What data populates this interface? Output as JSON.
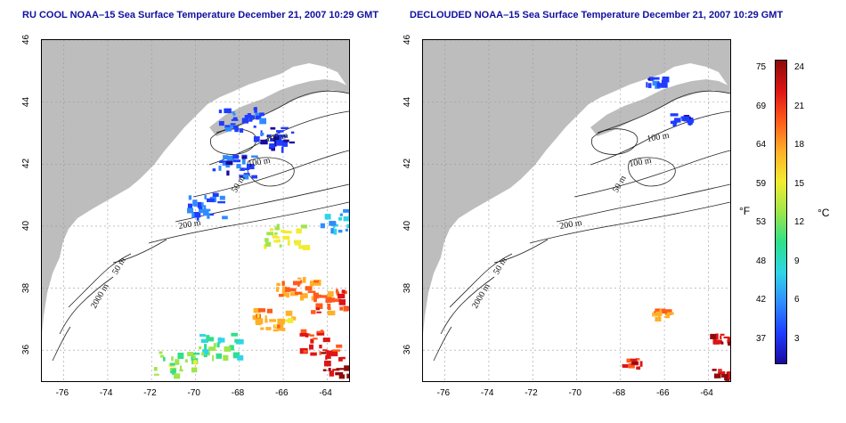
{
  "titles": {
    "left": "RU COOL NOAA–15 Sea Surface Temperature December 21, 2007 10:29 GMT",
    "right": "DECLOUDED NOAA–15 Sea Surface Temperature December 21, 2007 10:29 GMT"
  },
  "colors": {
    "land": "#bdbdbd",
    "ocean": "#ffffff",
    "title": "#1010a0",
    "contour": "#222222"
  },
  "contour_labels": [
    "100 m",
    "100 m",
    "50 m",
    "200 m",
    "50 m",
    "2000 m"
  ],
  "colorbar": {
    "fahrenheit_label": "°F",
    "celsius_label": "°C",
    "fahrenheit_ticks": [
      "75",
      "69",
      "64",
      "59",
      "53",
      "48",
      "42",
      "37"
    ],
    "celsius_ticks": [
      "24",
      "21",
      "18",
      "15",
      "12",
      "9",
      "6",
      "3"
    ],
    "colors": [
      "#1a0a9e",
      "#1f3cff",
      "#2f8cff",
      "#2fd6e6",
      "#2ee08a",
      "#9ee64a",
      "#f3ec30",
      "#ffb028",
      "#ff5b1a",
      "#dd1515",
      "#8e0b0b"
    ]
  },
  "chart_data": [
    {
      "type": "heatmap",
      "title": "RU COOL NOAA–15 Sea Surface Temperature December 21, 2007 10:29 GMT",
      "x_ticks": [
        "-76",
        "-74",
        "-72",
        "-70",
        "-68",
        "-66",
        "-64"
      ],
      "y_ticks": [
        "36",
        "38",
        "40",
        "42",
        "44",
        "46"
      ],
      "xlim": [
        -77,
        -63
      ],
      "ylim": [
        35,
        46
      ],
      "grid": true,
      "value_range_C": [
        0,
        25
      ],
      "sst_patches": [
        {
          "lon": -66.5,
          "lat": 42.9,
          "temp_C": 2
        },
        {
          "lon": -68.0,
          "lat": 43.5,
          "temp_C": 3
        },
        {
          "lon": -68.3,
          "lat": 42.0,
          "temp_C": 3
        },
        {
          "lon": -69.5,
          "lat": 40.7,
          "temp_C": 4
        },
        {
          "lon": -63.5,
          "lat": 40.2,
          "temp_C": 6
        },
        {
          "lon": -66.0,
          "lat": 39.7,
          "temp_C": 14
        },
        {
          "lon": -65.5,
          "lat": 38.0,
          "temp_C": 19
        },
        {
          "lon": -64.0,
          "lat": 37.6,
          "temp_C": 20
        },
        {
          "lon": -66.5,
          "lat": 37.0,
          "temp_C": 18
        },
        {
          "lon": -64.5,
          "lat": 36.3,
          "temp_C": 22
        },
        {
          "lon": -69.0,
          "lat": 36.2,
          "temp_C": 10
        },
        {
          "lon": -71.0,
          "lat": 35.6,
          "temp_C": 12
        },
        {
          "lon": -63.3,
          "lat": 35.5,
          "temp_C": 24
        }
      ]
    },
    {
      "type": "heatmap",
      "title": "DECLOUDED NOAA–15 Sea Surface Temperature December 21, 2007 10:29 GMT",
      "x_ticks": [
        "-76",
        "-74",
        "-72",
        "-70",
        "-68",
        "-66",
        "-64"
      ],
      "y_ticks": [
        "36",
        "38",
        "40",
        "42",
        "44",
        "46"
      ],
      "xlim": [
        -77,
        -63
      ],
      "ylim": [
        35,
        46
      ],
      "grid": true,
      "value_range_C": [
        0,
        25
      ],
      "sst_patches": [
        {
          "lon": -65.3,
          "lat": 43.5,
          "temp_C": 2
        },
        {
          "lon": -66.4,
          "lat": 44.7,
          "temp_C": 3
        },
        {
          "lon": -63.5,
          "lat": 36.4,
          "temp_C": 23
        },
        {
          "lon": -67.5,
          "lat": 35.6,
          "temp_C": 22
        },
        {
          "lon": -63.4,
          "lat": 35.3,
          "temp_C": 23
        },
        {
          "lon": -66.2,
          "lat": 37.2,
          "temp_C": 18
        }
      ]
    }
  ]
}
